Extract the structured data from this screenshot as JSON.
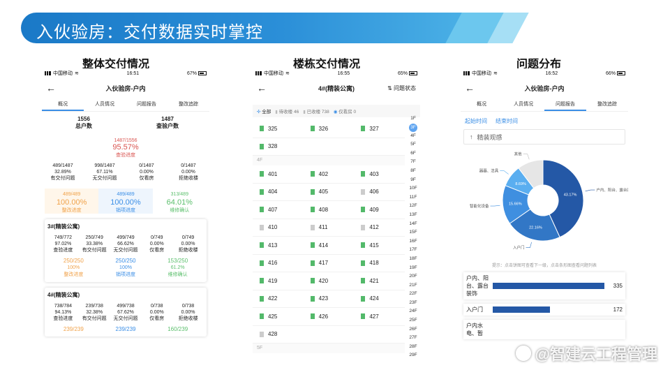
{
  "banner": {
    "title": "入伙验房：交付数据实时掌控"
  },
  "sections": {
    "overall": "整体交付情况",
    "building": "楼栋交付情况",
    "issues": "问题分布"
  },
  "phone1": {
    "status": {
      "carrier": "中国移动",
      "time": "16:51",
      "battery": "67%"
    },
    "nav_title": "入伙验房-户内",
    "tabs": [
      "概况",
      "人员情况",
      "问题报告",
      "整改追踪"
    ],
    "summary": [
      {
        "value": "1556",
        "label": "总户数"
      },
      {
        "value": "1487",
        "label": "查验户数"
      }
    ],
    "rate": {
      "fraction": "1487/1556",
      "percent": "95.57%",
      "label": "查验进度"
    },
    "grid": [
      {
        "a": "489/1487",
        "b": "32.89%",
        "c": "有交付问题"
      },
      {
        "a": "998/1487",
        "b": "67.11%",
        "c": "无交付问题"
      },
      {
        "a": "0/1487",
        "b": "0.00%",
        "c": "仅看房"
      },
      {
        "a": "0/1487",
        "b": "0.00%",
        "c": "拒绝收楼"
      }
    ],
    "progress": [
      {
        "frac": "489/489",
        "pct": "100.00%",
        "label": "整改进度"
      },
      {
        "frac": "489/489",
        "pct": "100.00%",
        "label": "销项进度"
      },
      {
        "frac": "313/489",
        "pct": "64.01%",
        "label": "维修确认"
      }
    ],
    "cards": [
      {
        "title": "3#(精装公寓)",
        "stats": [
          {
            "a": "749/772",
            "b": "97.02%",
            "c": "查验进度"
          },
          {
            "a": "250/749",
            "b": "33.38%",
            "c": "有交付问题"
          },
          {
            "a": "499/749",
            "b": "66.62%",
            "c": "无交付问题"
          },
          {
            "a": "0/749",
            "b": "0.00%",
            "c": "仅看房"
          },
          {
            "a": "0/749",
            "b": "0.00%",
            "c": "拒绝收楼"
          }
        ],
        "prog": [
          {
            "a": "250/250",
            "b": "100%",
            "c": "整改进度"
          },
          {
            "a": "250/250",
            "b": "100%",
            "c": "销项进度"
          },
          {
            "a": "153/250",
            "b": "61.2%",
            "c": "维修确认"
          }
        ]
      },
      {
        "title": "4#(精装公寓)",
        "stats": [
          {
            "a": "738/784",
            "b": "94.13%",
            "c": "查验进度"
          },
          {
            "a": "239/738",
            "b": "32.38%",
            "c": "有交付问题"
          },
          {
            "a": "499/738",
            "b": "67.62%",
            "c": "无交付问题"
          },
          {
            "a": "0/738",
            "b": "0.00%",
            "c": "仅看房"
          },
          {
            "a": "0/738",
            "b": "0.00%",
            "c": "拒绝收楼"
          }
        ],
        "prog": [
          {
            "a": "239/239",
            "b": "",
            "c": ""
          },
          {
            "a": "239/239",
            "b": "",
            "c": ""
          },
          {
            "a": "160/239",
            "b": "",
            "c": ""
          }
        ]
      }
    ]
  },
  "phone2": {
    "status": {
      "carrier": "中国移动",
      "time": "16:55",
      "battery": "65%"
    },
    "nav_title": "4#(精装公寓)",
    "nav_right": "问题状态",
    "filters": [
      "全部",
      "待收楼 46",
      "已收楼 738",
      "仅看房 0"
    ],
    "floors": [
      {
        "label": "",
        "rooms": [
          [
            "325",
            "326",
            "327"
          ],
          [
            "328"
          ]
        ]
      },
      {
        "label": "4F",
        "rooms": [
          [
            "401",
            "402",
            "403"
          ],
          [
            "404",
            "405",
            "406"
          ],
          [
            "407",
            "408",
            "409"
          ],
          [
            "410",
            "411",
            "412"
          ],
          [
            "413",
            "414",
            "415"
          ],
          [
            "416",
            "417",
            "418"
          ],
          [
            "419",
            "420",
            "421"
          ],
          [
            "422",
            "423",
            "424"
          ],
          [
            "425",
            "426",
            "427"
          ],
          [
            "428"
          ]
        ]
      },
      {
        "label": "5F",
        "rooms": []
      }
    ],
    "grey_rooms": [
      "406",
      "410",
      "411",
      "412",
      "428"
    ],
    "floor_index": [
      "1F",
      "3F",
      "4F",
      "5F",
      "6F",
      "7F",
      "8F",
      "9F",
      "10F",
      "11F",
      "12F",
      "13F",
      "14F",
      "15F",
      "16F",
      "17F",
      "18F",
      "19F",
      "20F",
      "21F",
      "22F",
      "23F",
      "24F",
      "25F",
      "26F",
      "27F",
      "28F",
      "29F"
    ],
    "active_floor": "3F"
  },
  "phone3": {
    "status": {
      "carrier": "中国移动",
      "time": "16:52",
      "battery": "66%"
    },
    "nav_title": "入伙验房-户内",
    "tabs": [
      "概况",
      "人员情况",
      "问题报告",
      "整改追踪"
    ],
    "start_time": "起始时间",
    "end_time": "结束时间",
    "select": "精装观感",
    "hint": "提示：点击饼图可查看下一级，点击条形图查看问题列表",
    "chart_data": {
      "type": "pie",
      "slices": [
        {
          "name": "户内、阳台、露台装饰",
          "value": 43.17,
          "label": "43.17%",
          "color": "#2458a6"
        },
        {
          "name": "入户门",
          "value": 22.16,
          "label": "22.16%",
          "color": "#3277c6"
        },
        {
          "name": "智能化设备",
          "value": 15.66,
          "label": "15.66%",
          "color": "#3f8fe0"
        },
        {
          "name": "器器、洁具",
          "value": 8.69,
          "label": "8.69%",
          "color": "#5aaef0"
        },
        {
          "name": "其他",
          "value": 10.32,
          "label": "",
          "color": "#e6e6e6"
        }
      ]
    },
    "bars": [
      {
        "name": "户内、阳台、露台装饰",
        "value": 335
      },
      {
        "name": "入户门",
        "value": 172
      },
      {
        "name": "户内水电、暂",
        "value": null
      }
    ]
  },
  "watermark": "@智建云工程管理"
}
